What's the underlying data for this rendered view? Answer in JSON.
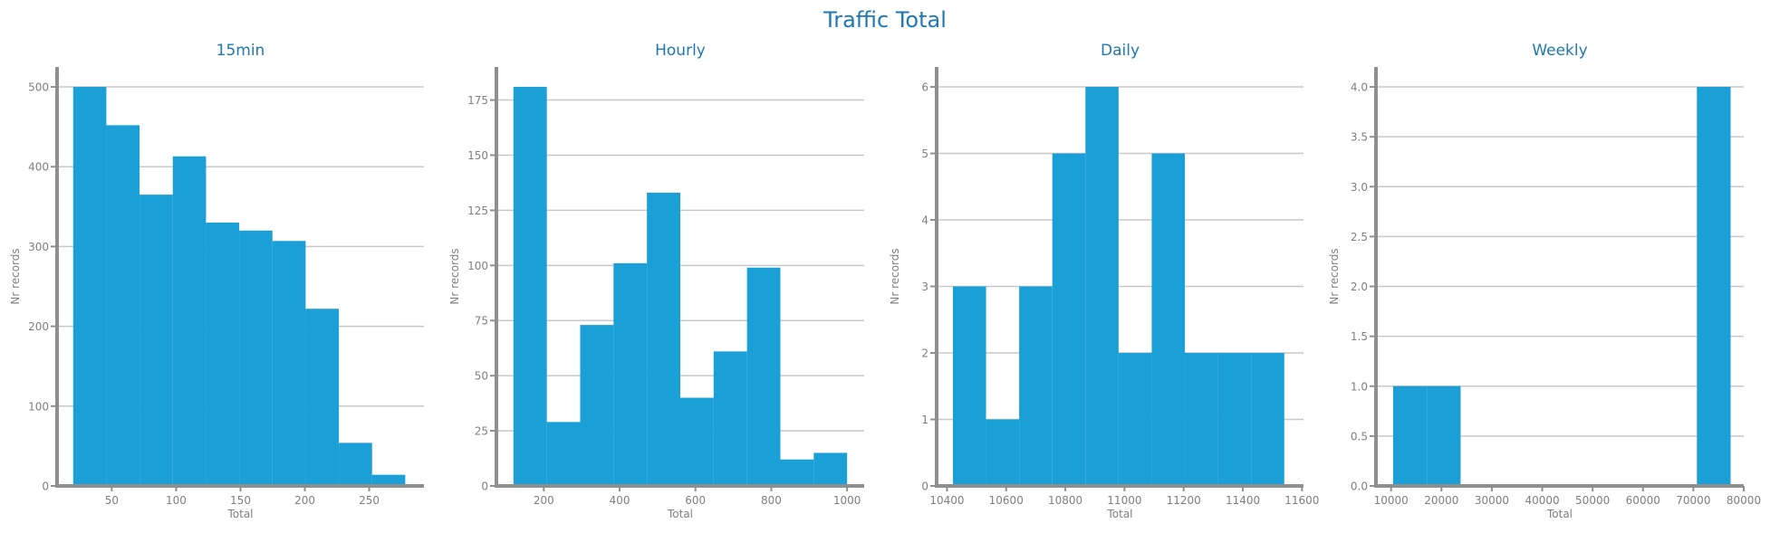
{
  "figure_title": "Traffic Total",
  "colors": {
    "bar": "#1a9fd6",
    "grid": "#c8c8c8",
    "axis": "#8f8f8f",
    "text": "#7f7f7f",
    "title": "#1f78b4"
  },
  "chart_data": [
    {
      "type": "bar",
      "title": "15min",
      "xlabel": "Total",
      "ylabel": "Nr records",
      "xlim": [
        7.5,
        292.5
      ],
      "ylim": [
        0,
        525
      ],
      "xticks": [
        50,
        100,
        150,
        200,
        250
      ],
      "yticks": [
        0,
        100,
        200,
        300,
        400,
        500
      ],
      "grid": "y",
      "bin_edges": [
        20,
        45.8,
        71.6,
        97.4,
        123.2,
        149,
        174.8,
        200.6,
        226.4,
        252.2,
        278
      ],
      "values": [
        500,
        452,
        365,
        413,
        330,
        320,
        307,
        222,
        54,
        14
      ]
    },
    {
      "type": "bar",
      "title": "Hourly",
      "xlabel": "Total",
      "ylabel": "Nr records",
      "xlim": [
        75,
        1045
      ],
      "ylim": [
        0,
        190
      ],
      "xticks": [
        200,
        400,
        600,
        800,
        1000
      ],
      "yticks": [
        0,
        25,
        50,
        75,
        100,
        125,
        150,
        175
      ],
      "grid": "y",
      "bin_edges": [
        120,
        208,
        296,
        384,
        472,
        560,
        648,
        736,
        824,
        912,
        1000
      ],
      "values": [
        181,
        29,
        73,
        101,
        133,
        40,
        61,
        99,
        12,
        15
      ]
    },
    {
      "type": "bar",
      "title": "Daily",
      "xlabel": "Total",
      "ylabel": "Nr records",
      "xlim": [
        10365,
        11605
      ],
      "ylim": [
        0,
        6.3
      ],
      "xticks": [
        10400,
        10600,
        10800,
        11000,
        11200,
        11400,
        11600
      ],
      "yticks": [
        0,
        1,
        2,
        3,
        4,
        5,
        6
      ],
      "grid": "y",
      "bin_edges": [
        10420,
        10532,
        10644,
        10756,
        10868,
        10980,
        11092,
        11204,
        11316,
        11428,
        11540
      ],
      "values": [
        3,
        1,
        3,
        5,
        6,
        2,
        5,
        2,
        2,
        2
      ]
    },
    {
      "type": "bar",
      "title": "Weekly",
      "xlabel": "Total",
      "ylabel": "Nr records",
      "xlim": [
        7000,
        80000
      ],
      "ylim": [
        0,
        4.2
      ],
      "xticks": [
        10000,
        20000,
        30000,
        40000,
        50000,
        60000,
        70000,
        80000
      ],
      "ytick_labels": [
        "0.0",
        "0.5",
        "1.0",
        "1.5",
        "2.0",
        "2.5",
        "3.0",
        "3.5",
        "4.0"
      ],
      "yticks": [
        0,
        0.5,
        1,
        1.5,
        2,
        2.5,
        3,
        3.5,
        4
      ],
      "grid": "y",
      "bin_edges": [
        10400,
        17100,
        23800,
        30500,
        37200,
        43900,
        50600,
        57300,
        64000,
        70700,
        77400
      ],
      "values": [
        1,
        1,
        0,
        0,
        0,
        0,
        0,
        0,
        0,
        4
      ]
    }
  ]
}
